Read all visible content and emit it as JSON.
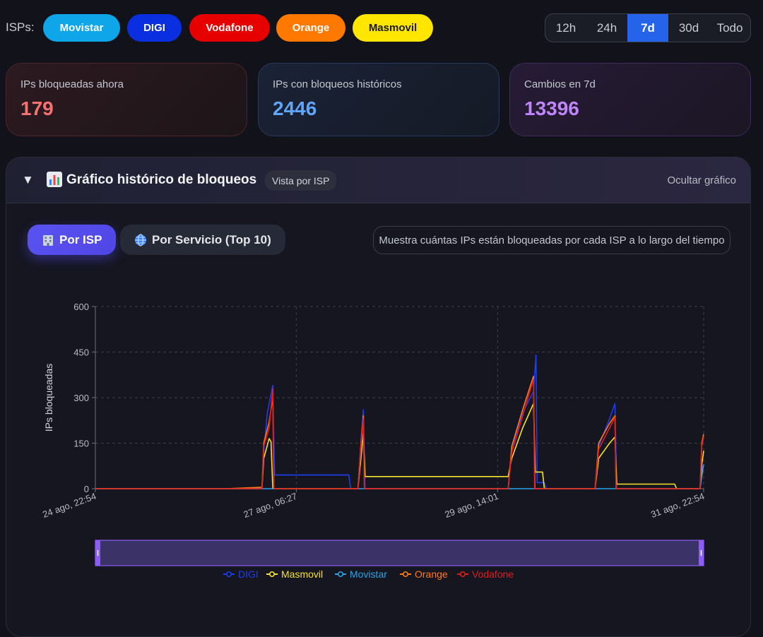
{
  "isp_bar": {
    "label": "ISPs:",
    "pills": [
      {
        "label": "Movistar",
        "color": "#0ea5e9"
      },
      {
        "label": "DIGI",
        "color": "#0a2fe0"
      },
      {
        "label": "Vodafone",
        "color": "#e60000"
      },
      {
        "label": "Orange",
        "color": "#ff7900"
      },
      {
        "label": "Masmovil",
        "color": "#ffe600"
      }
    ]
  },
  "time_range": {
    "options": [
      "12h",
      "24h",
      "7d",
      "30d",
      "Todo"
    ],
    "selected": "7d"
  },
  "stats": [
    {
      "label": "IPs bloqueadas ahora",
      "value": "179",
      "color": "#f87171"
    },
    {
      "label": "IPs con bloqueos históricos",
      "value": "2446",
      "color": "#60a5fa"
    },
    {
      "label": "Cambios en 7d",
      "value": "13396",
      "color": "#c084fc"
    }
  ],
  "panel": {
    "toggle": "▼",
    "title": "Gráfico histórico de bloqueos",
    "badge": "Vista por ISP",
    "hide_label": "Ocultar gráfico",
    "tabs": [
      {
        "label": "Por ISP",
        "icon": "building-icon",
        "active": true
      },
      {
        "label": "Por Servicio (Top 10)",
        "icon": "globe-icon",
        "active": false
      }
    ],
    "description": "Muestra cuántas IPs están bloqueadas por cada ISP a lo largo del tiempo"
  },
  "chart_data": {
    "type": "line",
    "title": "",
    "xlabel": "",
    "ylabel": "IPs bloqueadas",
    "ylim": [
      0,
      600
    ],
    "yticks": [
      0,
      150,
      300,
      450,
      600
    ],
    "xlim_hours": [
      0,
      168
    ],
    "xticks": [
      {
        "label": "24 ago, 22:54",
        "hour": 0
      },
      {
        "label": "27 ago, 06:27",
        "hour": 55.5
      },
      {
        "label": "29 ago, 14:01",
        "hour": 111.1
      },
      {
        "label": "31 ago, 22:54",
        "hour": 168
      }
    ],
    "grid": true,
    "legend_position": "bottom",
    "series": [
      {
        "name": "DIGI",
        "color": "#1d3df0",
        "points": [
          [
            0,
            0
          ],
          [
            36,
            0
          ],
          [
            46,
            0
          ],
          [
            46.5,
            120
          ],
          [
            47.5,
            250
          ],
          [
            49,
            340
          ],
          [
            49.5,
            45
          ],
          [
            70,
            45
          ],
          [
            70.5,
            0
          ],
          [
            72.5,
            0
          ],
          [
            73.5,
            180
          ],
          [
            74,
            260
          ],
          [
            74.5,
            0
          ],
          [
            114,
            0
          ],
          [
            115,
            130
          ],
          [
            118,
            250
          ],
          [
            121,
            320
          ],
          [
            121.7,
            440
          ],
          [
            122,
            20
          ],
          [
            124,
            20
          ],
          [
            124.5,
            0
          ],
          [
            138,
            0
          ],
          [
            139,
            140
          ],
          [
            142,
            230
          ],
          [
            143.5,
            280
          ],
          [
            144,
            0
          ],
          [
            167,
            0
          ],
          [
            167.5,
            60
          ],
          [
            168,
            80
          ]
        ]
      },
      {
        "name": "Masmovil",
        "color": "#f5e12a",
        "points": [
          [
            0,
            0
          ],
          [
            46,
            0
          ],
          [
            46.5,
            100
          ],
          [
            48,
            165
          ],
          [
            48.5,
            155
          ],
          [
            49,
            0
          ],
          [
            72.5,
            0
          ],
          [
            73.5,
            120
          ],
          [
            74,
            180
          ],
          [
            74.5,
            40
          ],
          [
            114,
            40
          ],
          [
            115,
            100
          ],
          [
            118,
            200
          ],
          [
            121,
            280
          ],
          [
            121.5,
            55
          ],
          [
            123.5,
            55
          ],
          [
            124,
            0
          ],
          [
            138,
            0
          ],
          [
            139,
            100
          ],
          [
            142,
            150
          ],
          [
            143.5,
            170
          ],
          [
            144,
            15
          ],
          [
            160,
            15
          ],
          [
            160.5,
            0
          ],
          [
            167,
            0
          ],
          [
            167.5,
            80
          ],
          [
            168,
            125
          ]
        ]
      },
      {
        "name": "Movistar",
        "color": "#2aa3e8",
        "points": [
          [
            0,
            0
          ],
          [
            46,
            0
          ],
          [
            46.5,
            0
          ],
          [
            167,
            0
          ],
          [
            167.5,
            40
          ],
          [
            168,
            80
          ]
        ]
      },
      {
        "name": "Orange",
        "color": "#ff7a1a",
        "points": [
          [
            0,
            0
          ],
          [
            36,
            0
          ],
          [
            46,
            5
          ],
          [
            46.5,
            150
          ],
          [
            48,
            220
          ],
          [
            49,
            300
          ],
          [
            49.3,
            0
          ],
          [
            72.5,
            0
          ],
          [
            73.5,
            170
          ],
          [
            74,
            240
          ],
          [
            74.3,
            0
          ],
          [
            114,
            0
          ],
          [
            115,
            140
          ],
          [
            118,
            260
          ],
          [
            121,
            370
          ],
          [
            121.4,
            0
          ],
          [
            138,
            0
          ],
          [
            139,
            150
          ],
          [
            142,
            215
          ],
          [
            143.5,
            240
          ],
          [
            143.8,
            0
          ],
          [
            167,
            0
          ],
          [
            167.5,
            150
          ],
          [
            168,
            180
          ]
        ]
      },
      {
        "name": "Vodafone",
        "color": "#e11d1d",
        "points": [
          [
            0,
            0
          ],
          [
            46,
            0
          ],
          [
            46.5,
            140
          ],
          [
            48,
            200
          ],
          [
            49,
            330
          ],
          [
            49.3,
            0
          ],
          [
            72.5,
            0
          ],
          [
            73.5,
            160
          ],
          [
            74,
            230
          ],
          [
            74.3,
            0
          ],
          [
            114,
            0
          ],
          [
            115,
            120
          ],
          [
            118,
            240
          ],
          [
            121,
            360
          ],
          [
            121.3,
            0
          ],
          [
            138,
            0
          ],
          [
            139,
            130
          ],
          [
            142,
            200
          ],
          [
            143.5,
            235
          ],
          [
            143.8,
            0
          ],
          [
            167,
            0
          ],
          [
            167.5,
            140
          ],
          [
            168,
            170
          ]
        ]
      }
    ]
  }
}
